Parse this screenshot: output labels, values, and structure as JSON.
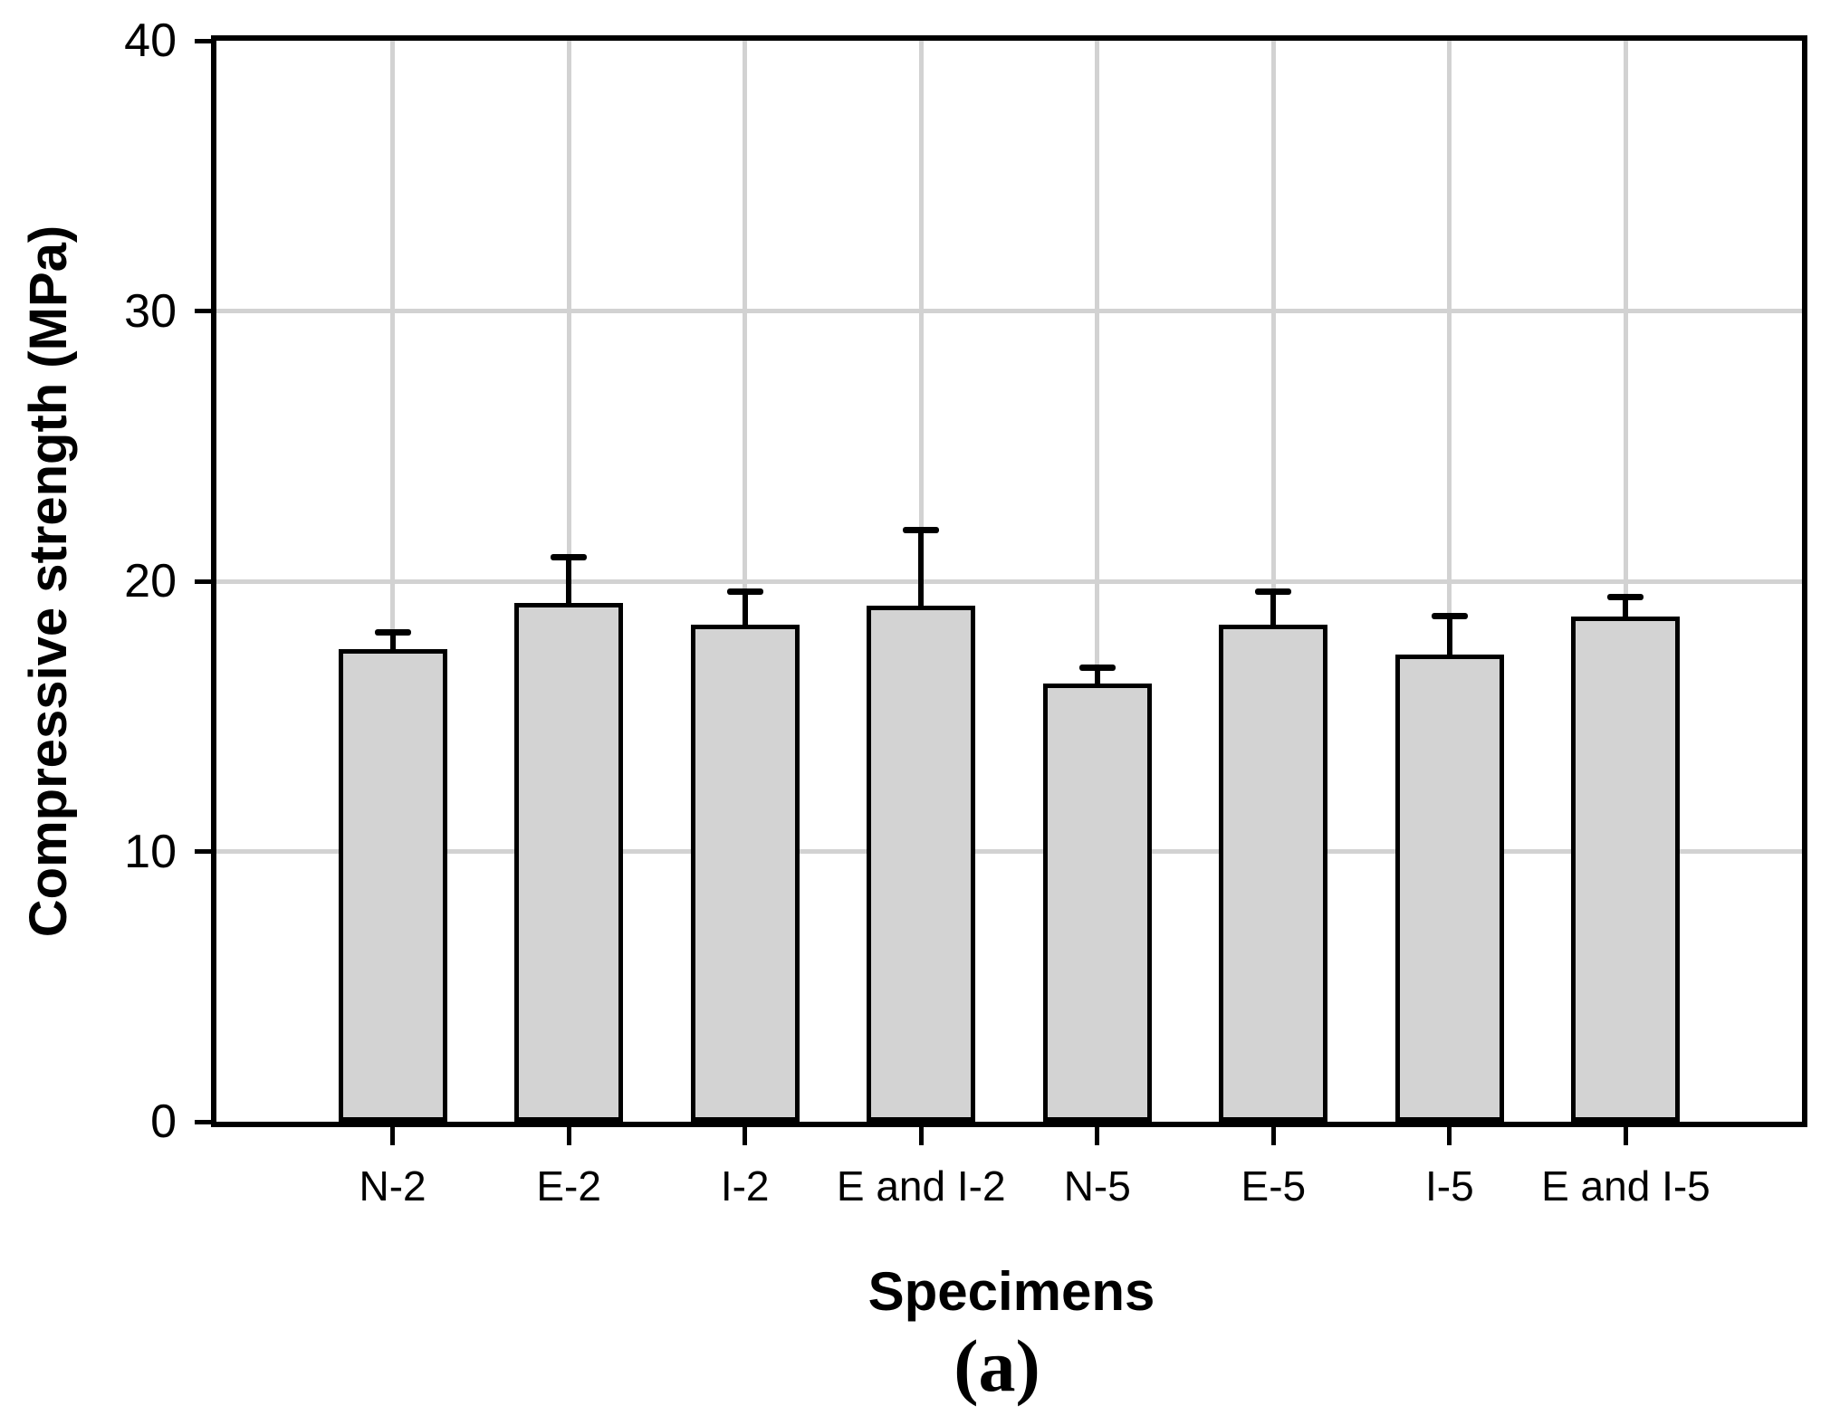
{
  "figure": {
    "caption": "(a)"
  },
  "chart_data": {
    "type": "bar",
    "title": "",
    "xlabel": "Specimens",
    "ylabel": "Compressive strength (MPa)",
    "categories": [
      "N-2",
      "E-2",
      "I-2",
      "E and I-2",
      "N-5",
      "E-5",
      "I-5",
      "E and I-5"
    ],
    "values": [
      17.5,
      19.2,
      18.4,
      19.1,
      16.2,
      18.4,
      17.3,
      18.7
    ],
    "error_plus": [
      0.6,
      1.7,
      1.2,
      2.8,
      0.6,
      1.2,
      1.4,
      0.7
    ],
    "ylim": [
      0,
      40
    ],
    "yticks": [
      0,
      10,
      20,
      30,
      40
    ],
    "grid": "on",
    "legend": "none",
    "bar_fill_color": "#d3d3d3",
    "bar_border_color": "#000000",
    "gridline_color": "#d2d2d2",
    "axis_color": "#000000"
  }
}
